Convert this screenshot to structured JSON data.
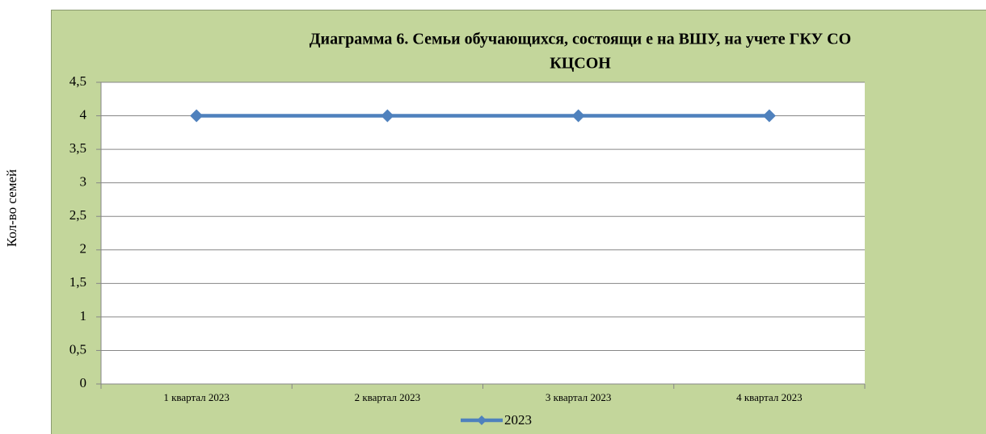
{
  "chart_data": {
    "type": "line",
    "title": [
      "Диаграмма 6. Семьи обучающихся, состоящи е на ВШУ, на учете ГКУ СО",
      "КЦСОН"
    ],
    "y_label": "Кол-во семей",
    "categories": [
      "1 квартал 2023",
      "2 квартал 2023",
      "3 квартал 2023",
      "4 квартал 2023"
    ],
    "series": [
      {
        "name": "2023",
        "color": "#4f81bd",
        "values": [
          4,
          4,
          4,
          4
        ]
      }
    ],
    "ylim": [
      0,
      4.5
    ],
    "yticks": [
      0,
      {
        "value": 0.5,
        "label": "0,5"
      },
      1,
      {
        "value": 1.5,
        "label": "1,5"
      },
      2,
      {
        "value": 2.5,
        "label": "2,5"
      },
      3,
      {
        "value": 3.5,
        "label": "3,5"
      },
      4,
      {
        "value": 4.5,
        "label": "4,5"
      }
    ],
    "grid": true,
    "legend": "bottom"
  }
}
